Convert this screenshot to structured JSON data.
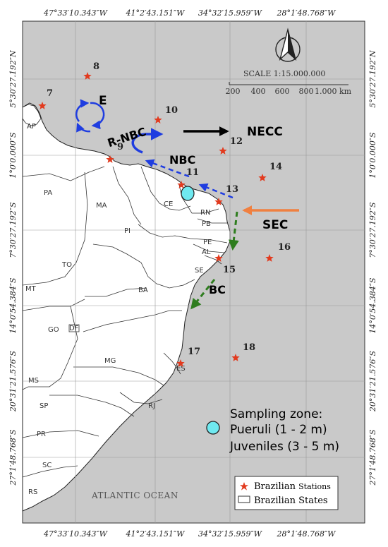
{
  "graticule": {
    "top": [
      "47°33′10.343″W",
      "41°2′43.151″W",
      "34°32′15.959″W",
      "28°1′48.768″W"
    ],
    "bottom": [
      "47°33′10.343″W",
      "41°2′43.151″W",
      "34°32′15.959″W",
      "28°1′48.768″W"
    ],
    "left": [
      "5°30′27.192″N",
      "1°0′0.000″S",
      "7°30′27.192″S",
      "14°0′54.384″S",
      "20°31′21.576″S",
      "27°1′48.768″S"
    ],
    "right": [
      "5°30′27.192″N",
      "1°0′0.000″S",
      "7°30′27.192″S",
      "14°0′54.384″S",
      "20°31′21.576″S",
      "27°1′48.768″S"
    ]
  },
  "north_arrow": {
    "icon": "north-arrow-icon"
  },
  "scale": {
    "title": "SCALE 1:15.000.000",
    "ticks": [
      "200",
      "400",
      "600",
      "800",
      "1.000 km"
    ]
  },
  "stations": [
    "7",
    "8",
    "9",
    "10",
    "11",
    "12",
    "13",
    "14",
    "15",
    "16",
    "17",
    "18"
  ],
  "states": [
    "AP",
    "PA",
    "MA",
    "CE",
    "RN",
    "PB",
    "PI",
    "PE",
    "AL",
    "SE",
    "TO",
    "BA",
    "MT",
    "GO",
    "DF",
    "MG",
    "ES",
    "MS",
    "SP",
    "RJ",
    "PR",
    "SC",
    "RS"
  ],
  "currents": {
    "e": "E",
    "rnbc": "R-NBC",
    "necc": "NECC",
    "nbc": "NBC",
    "sec": "SEC",
    "bc": "BC"
  },
  "current_colors": {
    "blue": "#1f3de0",
    "black": "#000000",
    "orange": "#f08040",
    "green": "#2e7d1e"
  },
  "sampling_legend": {
    "title": "Sampling zone:",
    "pueruli": "Pueruli (1 - 2 m)",
    "juveniles": "Juveniles (3 - 5 m)",
    "marker_color": "#6fe9f0"
  },
  "ocean_label": "ATLANTIC OCEAN",
  "legend": {
    "stations_prefix": "Brazilian",
    "stations_suffix": "Stations",
    "states": "Brazilian States"
  },
  "colors": {
    "ocean": "#c9c9c9",
    "land": "#ffffff",
    "station": "#e23a1e"
  }
}
